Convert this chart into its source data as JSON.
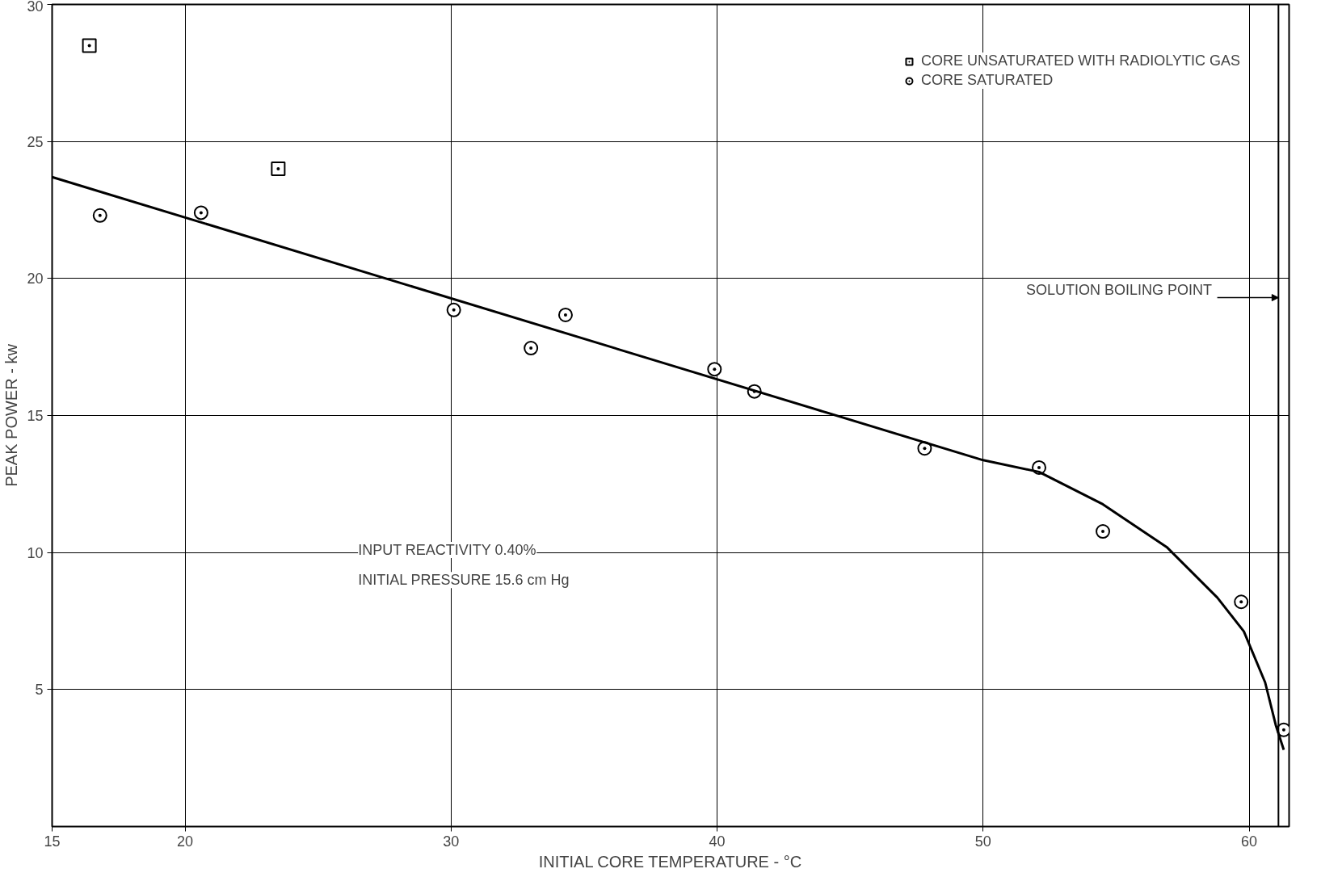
{
  "chart_data": {
    "type": "scatter",
    "xlabel": "INITIAL CORE TEMPERATURE - °C",
    "ylabel": "PEAK POWER - kw",
    "xlim": [
      15,
      61.5
    ],
    "ylim": [
      0,
      30
    ],
    "xticks": [
      15,
      20,
      30,
      40,
      50,
      60
    ],
    "yticks": [
      5,
      10,
      15,
      20,
      25,
      30
    ],
    "grid": true,
    "legend": "top right",
    "series": [
      {
        "name": "CORE UNSATURATED WITH RADIOLYTIC GAS",
        "color": "#000000",
        "marker": "square",
        "x": [
          16.4,
          23.5
        ],
        "values": [
          28.5,
          24.0
        ]
      },
      {
        "name": "CORE SATURATED",
        "color": "#000000",
        "marker": "circle",
        "x": [
          16.8,
          20.6,
          30.1,
          33.0,
          34.3,
          39.9,
          41.4,
          47.8,
          52.1,
          54.5,
          59.7,
          61.3
        ],
        "values": [
          22.3,
          22.4,
          18.85,
          17.46,
          18.67,
          16.69,
          15.88,
          13.8,
          13.1,
          10.77,
          8.2,
          3.53
        ]
      },
      {
        "type": "line",
        "color": "#000000",
        "x": [
          15,
          50,
          52.1,
          54.5,
          56.9,
          58.8,
          59.8,
          60.6,
          61.0,
          61.3
        ],
        "values": [
          23.7,
          13.37,
          12.94,
          11.76,
          10.2,
          8.36,
          7.12,
          5.26,
          3.7,
          2.8
        ]
      }
    ],
    "ref_lines": [
      {
        "axis": "x",
        "value": 61.1,
        "label": "SOLUTION BOILING POINT"
      }
    ],
    "annotations": [
      "INPUT REACTIVITY 0.40%",
      "INITIAL PRESSURE 15.6 cm Hg"
    ]
  }
}
